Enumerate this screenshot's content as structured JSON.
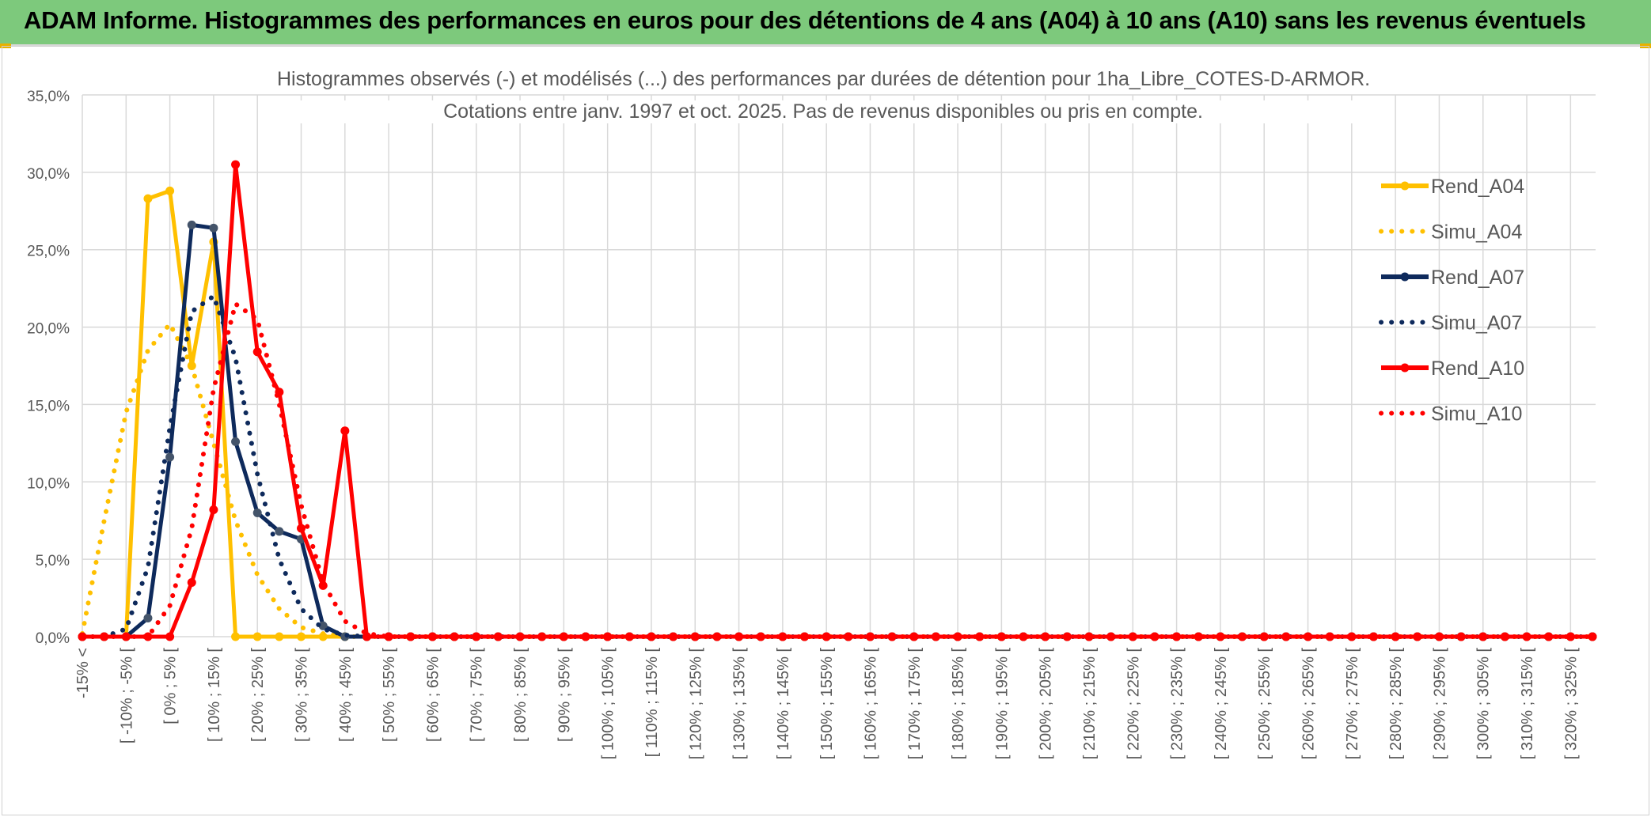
{
  "banner": {
    "title": "ADAM Informe. Histogrammes des performances en euros pour des détentions de 4 ans (A04) à 10 ans (A10) sans les revenus éventuels",
    "color": "#7dc97c"
  },
  "chart_data": {
    "type": "line",
    "title": "Histogrammes observés (-) et modélisés (...) des performances par durées de détention pour 1ha_Libre_COTES-D-ARMOR.",
    "subtitle": "Cotations entre janv. 1997 et oct. 2025. Pas de revenus disponibles ou pris en compte.",
    "xlabel": "",
    "ylabel": "",
    "ylim": [
      0,
      35
    ],
    "y_ticks": [
      "0,0%",
      "5,0%",
      "10,0%",
      "15,0%",
      "20,0%",
      "25,0%",
      "30,0%",
      "35,0%"
    ],
    "grid": true,
    "legend_position": "right",
    "x_tick_labels": [
      "-15% <",
      "[ -10% ; -5% [",
      "[ 0% ; 5% [",
      "[ 10% ; 15% [",
      "[ 20% ; 25% [",
      "[ 30% ; 35% [",
      "[ 40% ; 45% [",
      "[ 50% ; 55% [",
      "[ 60% ; 65% [",
      "[ 70% ; 75% [",
      "[ 80% ; 85% [",
      "[ 90% ; 95% [",
      "[ 100% ; 105% [",
      "[ 110% ; 115% [",
      "[ 120% ; 125% [",
      "[ 130% ; 135% [",
      "[ 140% ; 145% [",
      "[ 150% ; 155% [",
      "[ 160% ; 165% [",
      "[ 170% ; 175% [",
      "[ 180% ; 185% [",
      "[ 190% ; 195% [",
      "[ 200% ; 205% [",
      "[ 210% ; 215% [",
      "[ 220% ; 225% [",
      "[ 230% ; 235% [",
      "[ 240% ; 245% [",
      "[ 250% ; 255% [",
      "[ 260% ; 265% [",
      "[ 270% ; 275% [",
      "[ 280% ; 285% [",
      "[ 290% ; 295% [",
      "[ 300% ; 305% [",
      "[ 310% ; 315% [",
      "[ 320% ; 325% ["
    ],
    "series": [
      {
        "name": "Rend_A04",
        "color": "#ffc000",
        "style": "solid",
        "markers": true,
        "values": [
          0,
          0,
          0,
          28.3,
          28.8,
          17.5,
          25.5,
          0,
          0,
          0,
          0,
          0,
          0
        ]
      },
      {
        "name": "Simu_A04",
        "color": "#ffc000",
        "style": "dotted",
        "markers": false,
        "values": [
          0.2,
          7.5,
          14.5,
          18.5,
          20.2,
          17.5,
          12.5,
          7.5,
          4.0,
          1.8,
          0.6,
          0.2,
          0
        ]
      },
      {
        "name": "Rend_A07",
        "color": "#0e2a5c",
        "style": "solid",
        "markers": true,
        "values": [
          0,
          0,
          0,
          1.2,
          11.6,
          26.6,
          26.4,
          12.6,
          8.0,
          6.8,
          6.3,
          0.7,
          0,
          0
        ]
      },
      {
        "name": "Simu_A07",
        "color": "#0e2a5c",
        "style": "dotted",
        "markers": false,
        "values": [
          0,
          0,
          0.5,
          4.5,
          13.5,
          21.0,
          22.0,
          18.0,
          10.5,
          5.0,
          1.8,
          0.5,
          0.1,
          0
        ]
      },
      {
        "name": "Rend_A10",
        "color": "#ff0000",
        "style": "solid",
        "markers": true,
        "values": [
          0,
          0,
          0,
          0,
          0,
          3.5,
          8.2,
          30.5,
          18.4,
          15.8,
          7.0,
          3.3,
          13.3,
          0
        ]
      },
      {
        "name": "Simu_A10",
        "color": "#ff0000",
        "style": "dotted",
        "markers": false,
        "values": [
          0,
          0,
          0,
          0,
          2.0,
          7.0,
          16.0,
          21.5,
          20.5,
          15.0,
          8.5,
          3.5,
          1.0,
          0.2
        ]
      }
    ]
  }
}
